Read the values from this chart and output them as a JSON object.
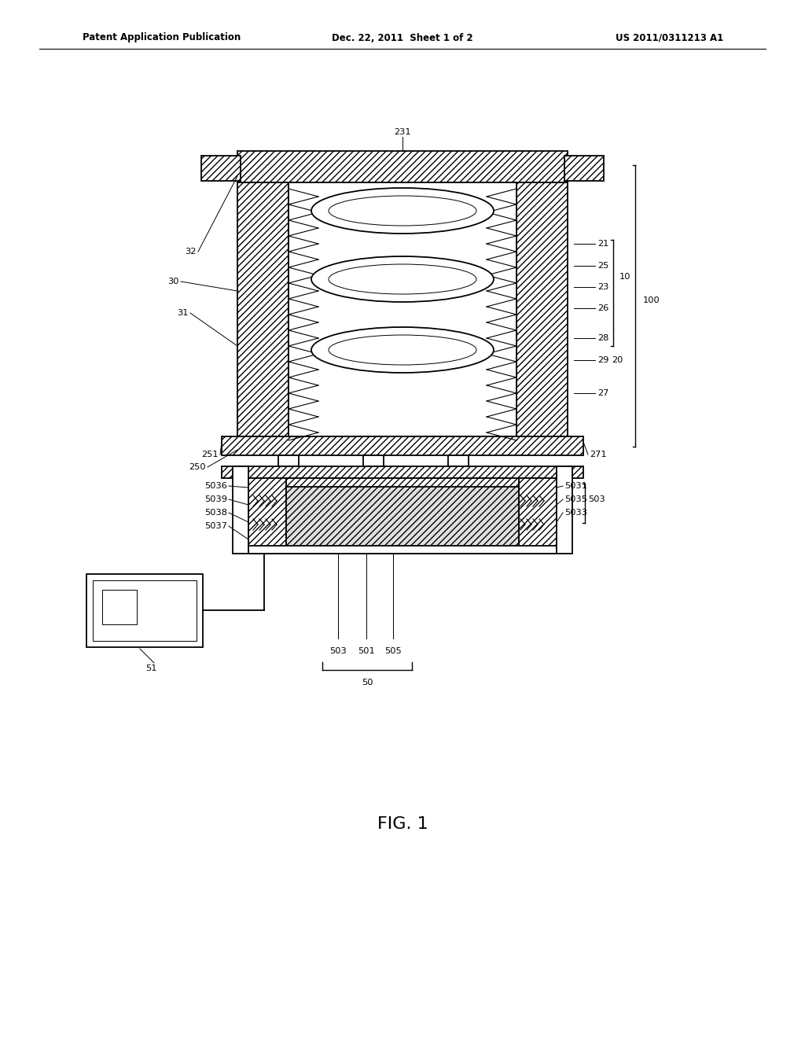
{
  "bg_color": "#ffffff",
  "line_color": "#000000",
  "header_left": "Patent Application Publication",
  "header_mid": "Dec. 22, 2011  Sheet 1 of 2",
  "header_right": "US 2011/0311213 A1",
  "fig_label": "FIG. 1"
}
